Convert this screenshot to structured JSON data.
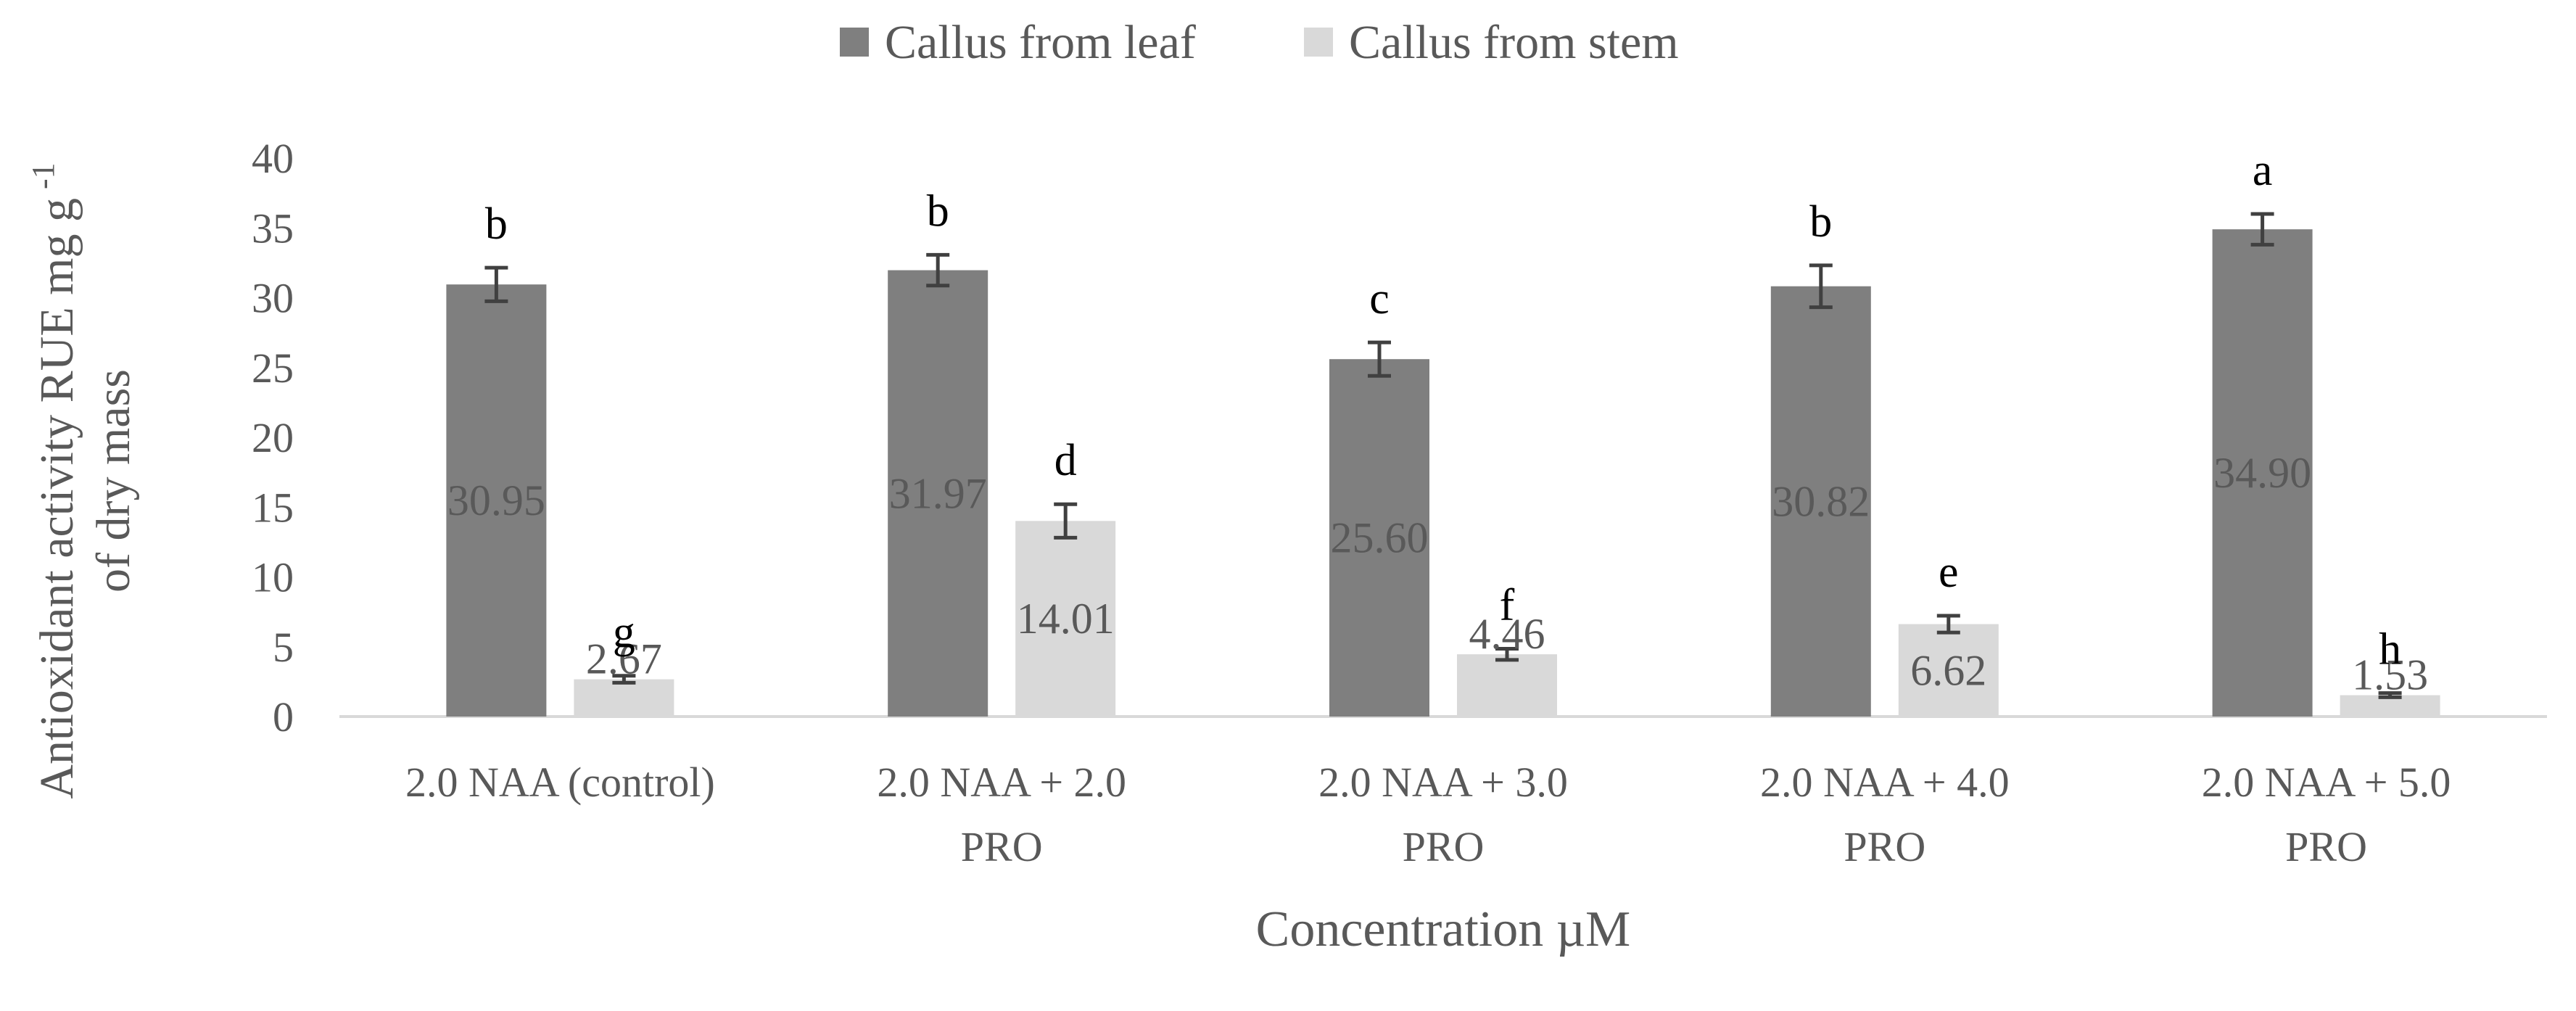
{
  "chart_data": {
    "type": "bar",
    "categories": [
      [
        "2.0  NAA (control)"
      ],
      [
        "2.0 NAA + 2.0",
        "PRO"
      ],
      [
        "2.0  NAA + 3.0",
        "PRO"
      ],
      [
        "2.0 NAA + 4.0",
        "PRO"
      ],
      [
        "2.0 NAA + 5.0",
        "PRO"
      ]
    ],
    "series": [
      {
        "name": "Callus from leaf",
        "color": "#7f7f7f",
        "values": [
          30.95,
          31.97,
          25.6,
          30.82,
          34.9
        ],
        "value_labels": [
          "30.95",
          "31.97",
          "25.60",
          "30.82",
          "34.90"
        ],
        "errors": [
          1.2,
          1.1,
          1.2,
          1.5,
          1.1
        ],
        "letters": [
          "b",
          "b",
          "c",
          "b",
          "a"
        ]
      },
      {
        "name": "Callus from stem",
        "color": "#d9d9d9",
        "values": [
          2.67,
          14.01,
          4.46,
          6.62,
          1.53
        ],
        "value_labels": [
          "2.67",
          "14.01",
          "4.46",
          "6.62",
          "1.53"
        ],
        "errors": [
          0.25,
          1.2,
          0.4,
          0.6,
          0.15
        ],
        "letters": [
          "g",
          "d",
          "f",
          "e",
          "h"
        ]
      }
    ],
    "xlabel": "Concentration µM",
    "ylabel": [
      "Antioxidant activity RUE mg g",
      "of dry mass"
    ],
    "ylabel_superscript": "-1",
    "ylim": [
      0,
      40
    ],
    "yticks": [
      0,
      5,
      10,
      15,
      20,
      25,
      30,
      35,
      40
    ],
    "legend_position": "top-center",
    "grid": false
  }
}
